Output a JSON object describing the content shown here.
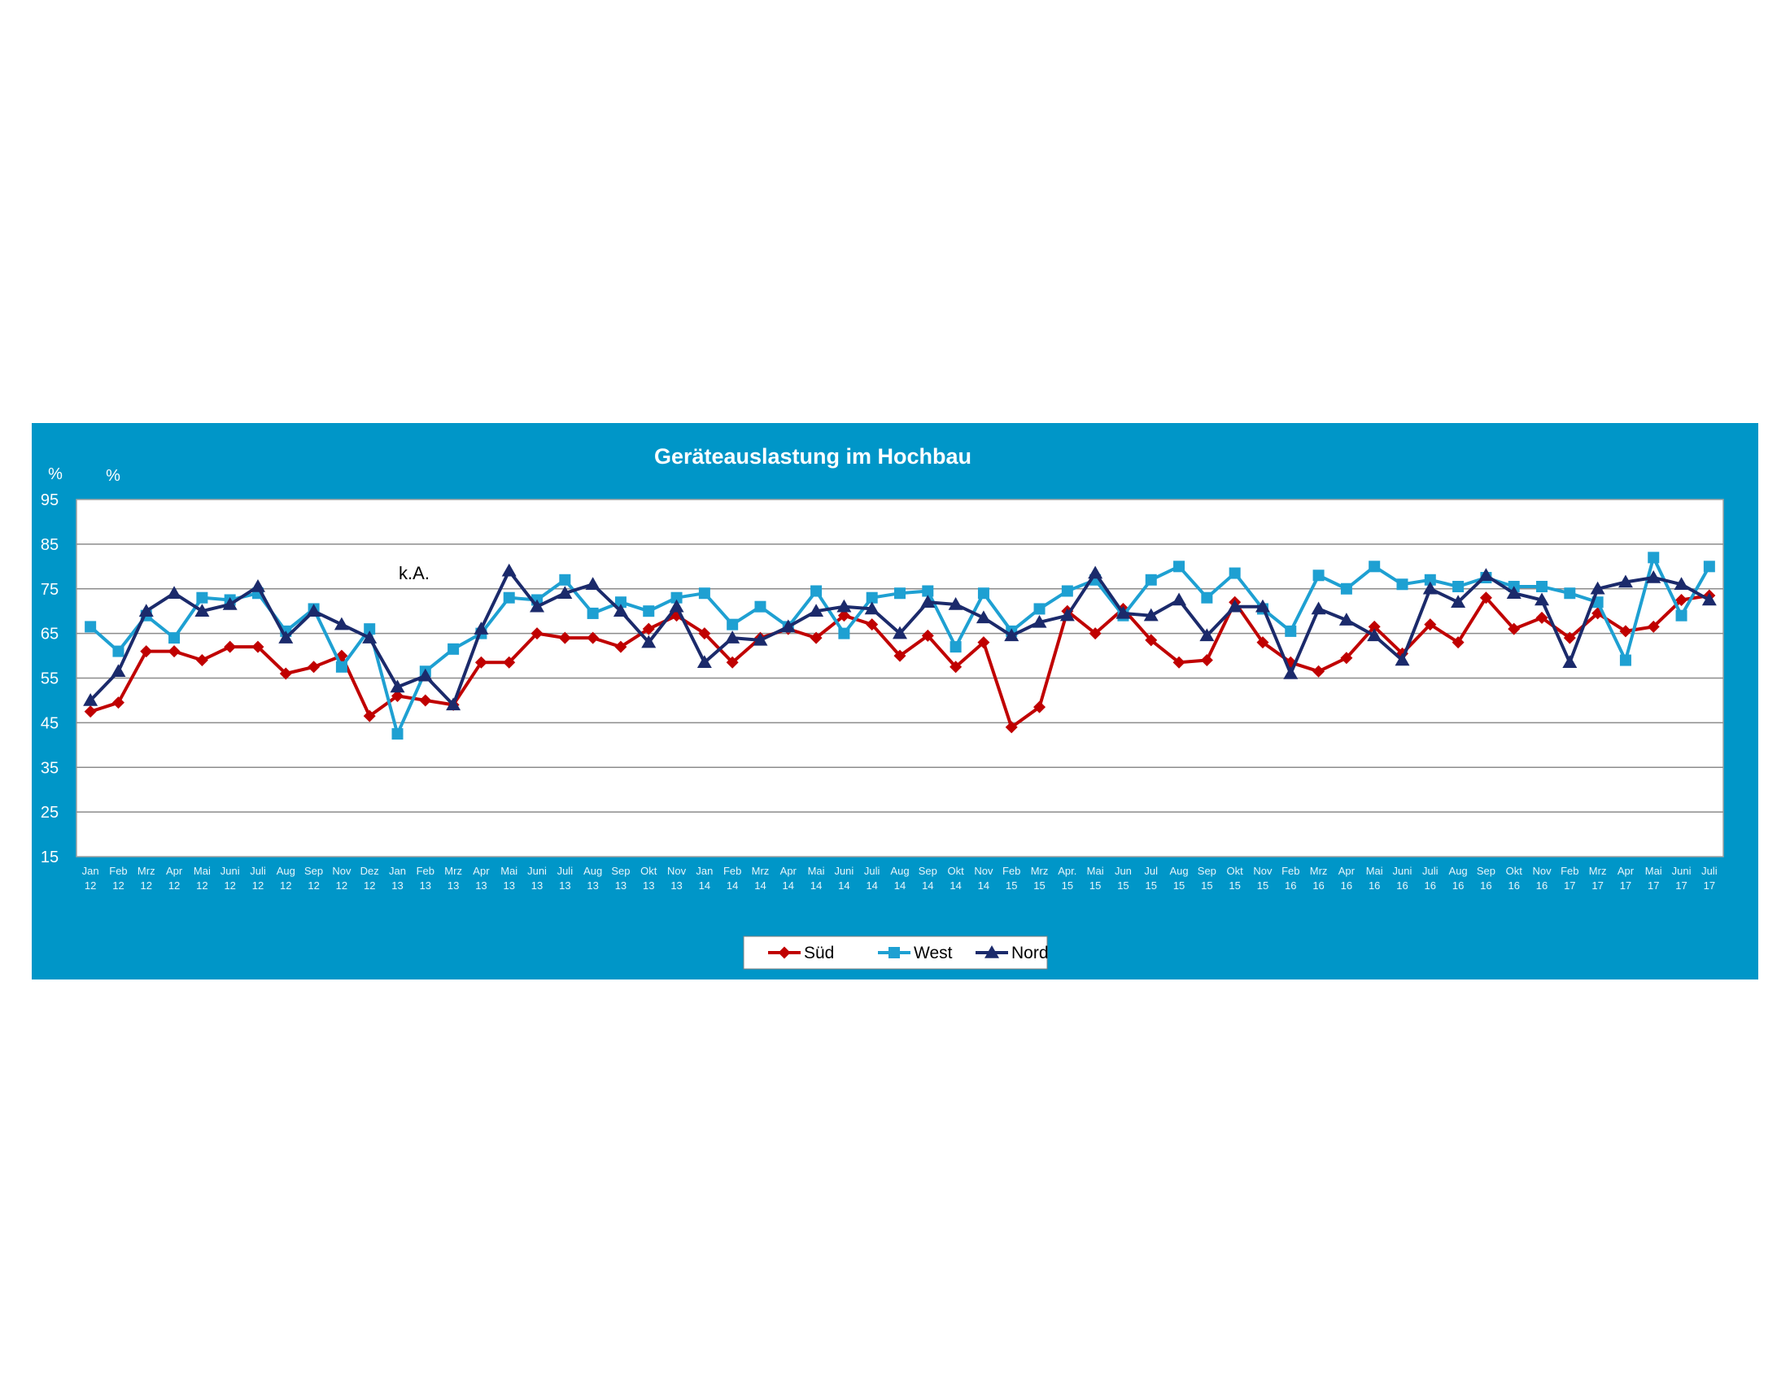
{
  "chart_data": {
    "type": "line",
    "title": "Geräteauslastung im Hochbau",
    "unit_labels": [
      "%",
      "%"
    ],
    "annotation": "k.A.",
    "ylim": [
      15,
      95
    ],
    "yticks": [
      15,
      25,
      35,
      45,
      55,
      65,
      75,
      85,
      95
    ],
    "grid": true,
    "legend_position": "bottom-center",
    "categories": [
      [
        "Jan",
        "12"
      ],
      [
        "Feb",
        "12"
      ],
      [
        "Mrz",
        "12"
      ],
      [
        "Apr",
        "12"
      ],
      [
        "Mai",
        "12"
      ],
      [
        "Juni",
        "12"
      ],
      [
        "Juli",
        "12"
      ],
      [
        "Aug",
        "12"
      ],
      [
        "Sep",
        "12"
      ],
      [
        "Nov",
        "12"
      ],
      [
        "Dez",
        "12"
      ],
      [
        "Jan",
        "13"
      ],
      [
        "Feb",
        "13"
      ],
      [
        "Mrz",
        "13"
      ],
      [
        "Apr",
        "13"
      ],
      [
        "Mai",
        "13"
      ],
      [
        "Juni",
        "13"
      ],
      [
        "Juli",
        "13"
      ],
      [
        "Aug",
        "13"
      ],
      [
        "Sep",
        "13"
      ],
      [
        "Okt",
        "13"
      ],
      [
        "Nov",
        "13"
      ],
      [
        "Jan",
        "14"
      ],
      [
        "Feb",
        "14"
      ],
      [
        "Mrz",
        "14"
      ],
      [
        "Apr",
        "14"
      ],
      [
        "Mai",
        "14"
      ],
      [
        "Juni",
        "14"
      ],
      [
        "Juli",
        "14"
      ],
      [
        "Aug",
        "14"
      ],
      [
        "Sep",
        "14"
      ],
      [
        "Okt",
        "14"
      ],
      [
        "Nov",
        "14"
      ],
      [
        "Feb",
        "15"
      ],
      [
        "Mrz",
        "15"
      ],
      [
        "Apr.",
        "15"
      ],
      [
        "Mai",
        "15"
      ],
      [
        "Jun",
        "15"
      ],
      [
        "Jul",
        "15"
      ],
      [
        "Aug",
        "15"
      ],
      [
        "Sep",
        "15"
      ],
      [
        "Okt",
        "15"
      ],
      [
        "Nov",
        "15"
      ],
      [
        "Feb",
        "16"
      ],
      [
        "Mrz",
        "16"
      ],
      [
        "Apr",
        "16"
      ],
      [
        "Mai",
        "16"
      ],
      [
        "Juni",
        "16"
      ],
      [
        "Juli",
        "16"
      ],
      [
        "Aug",
        "16"
      ],
      [
        "Sep",
        "16"
      ],
      [
        "Okt",
        "16"
      ],
      [
        "Nov",
        "16"
      ],
      [
        "Feb",
        "17"
      ],
      [
        "Mrz",
        "17"
      ],
      [
        "Apr",
        "17"
      ],
      [
        "Mai",
        "17"
      ],
      [
        "Juni",
        "17"
      ],
      [
        "Juli",
        "17"
      ]
    ],
    "series": [
      {
        "name": "Süd",
        "color": "#c00000",
        "marker": "diamond",
        "values": [
          47.5,
          49.5,
          61,
          61,
          59,
          62,
          62,
          56,
          57.5,
          60,
          46.5,
          51,
          50,
          49,
          58.5,
          58.5,
          65,
          64,
          64,
          62,
          66,
          69,
          65,
          58.5,
          64,
          66,
          64,
          69,
          67,
          60,
          64.5,
          57.5,
          63,
          44,
          48.5,
          70,
          65,
          70.5,
          63.5,
          58.5,
          59,
          72,
          63,
          58.5,
          56.5,
          59.5,
          66.5,
          60.5,
          67,
          63,
          73,
          66,
          68.5,
          64,
          69.5,
          65.5,
          66.5,
          72.5,
          73.5
        ]
      },
      {
        "name": "West",
        "color": "#1ea0d2",
        "marker": "square",
        "values": [
          66.5,
          61,
          69,
          64,
          73,
          72.5,
          74,
          65.5,
          70.5,
          57.5,
          66,
          42.5,
          56.5,
          61.5,
          65,
          73,
          72.5,
          77,
          69.5,
          72,
          70,
          73,
          74,
          67,
          71,
          66.5,
          74.5,
          65,
          73,
          74,
          74.5,
          62,
          74,
          65.5,
          70.5,
          74.5,
          77,
          69,
          77,
          80,
          73,
          78.5,
          70.5,
          65.5,
          78,
          75,
          80,
          76,
          77,
          75.5,
          77.5,
          75.5,
          75.5,
          74,
          72,
          59,
          82,
          69,
          80
        ]
      },
      {
        "name": "Nord",
        "color": "#1b2a6b",
        "marker": "triangle",
        "values": [
          50,
          56.5,
          70,
          74,
          70,
          71.5,
          75.5,
          64,
          70,
          67,
          64,
          53,
          55.5,
          49,
          66,
          79,
          71,
          74,
          76,
          70,
          63,
          71,
          58.5,
          64,
          63.5,
          66.5,
          70,
          71,
          70.5,
          65,
          72,
          71.5,
          68.5,
          64.5,
          67.5,
          69,
          78.5,
          69.5,
          69,
          72.5,
          64.5,
          71,
          71,
          56,
          70.5,
          68,
          64.5,
          59,
          75,
          72,
          78,
          74,
          72.5,
          58.5,
          75,
          76.5,
          77.5,
          76,
          72.5
        ]
      }
    ]
  }
}
